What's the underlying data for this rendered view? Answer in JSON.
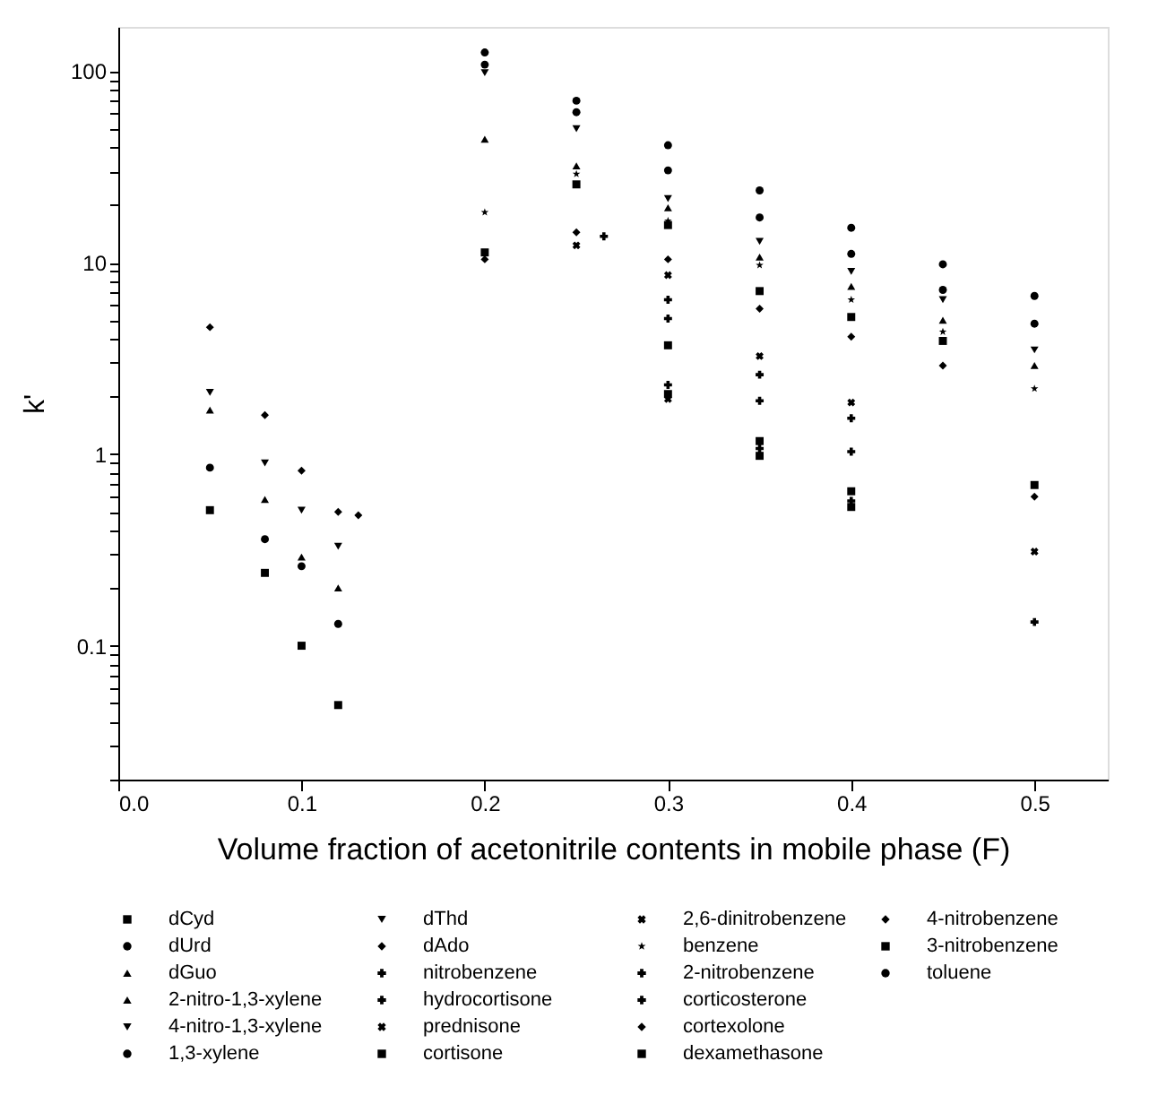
{
  "chart_data": {
    "type": "scatter",
    "xlabel": "Volume fraction of acetonitrile contents in mobile phase (F)",
    "ylabel": "k'",
    "x": [
      0.05,
      0.08,
      0.1,
      0.12,
      0.2,
      0.25,
      0.3,
      0.35,
      0.4,
      0.45,
      0.5
    ],
    "xlim": [
      0,
      0.54
    ],
    "ylim": [
      0.02,
      170
    ],
    "log": true,
    "grid": false,
    "legend": "bottom",
    "xticks": [
      {
        "value": 0,
        "label": "0.0"
      },
      0.1,
      0.2,
      0.3,
      0.4,
      0.5
    ],
    "yticks": [
      {
        "value": 0.02,
        "label": null
      },
      {
        "value": 0.03,
        "label": null
      },
      {
        "value": 0.04,
        "label": null
      },
      {
        "value": 0.05,
        "label": null
      },
      {
        "value": 0.06,
        "label": null
      },
      {
        "value": 0.07,
        "label": null
      },
      {
        "value": 0.08,
        "label": null
      },
      {
        "value": 0.09,
        "label": null
      },
      0.1,
      {
        "value": 0.2,
        "label": null
      },
      {
        "value": 0.3,
        "label": null
      },
      {
        "value": 0.4,
        "label": null
      },
      {
        "value": 0.5,
        "label": null
      },
      {
        "value": 0.6,
        "label": null
      },
      {
        "value": 0.7,
        "label": null
      },
      {
        "value": 0.8,
        "label": null
      },
      {
        "value": 0.9,
        "label": null
      },
      1,
      {
        "value": 2,
        "label": null
      },
      {
        "value": 3,
        "label": null
      },
      {
        "value": 4,
        "label": null
      },
      {
        "value": 5,
        "label": null
      },
      {
        "value": 6,
        "label": null
      },
      {
        "value": 7,
        "label": null
      },
      {
        "value": 8,
        "label": null
      },
      {
        "value": 9,
        "label": null
      },
      10,
      {
        "value": 20,
        "label": null
      },
      {
        "value": 30,
        "label": null
      },
      {
        "value": 40,
        "label": null
      },
      {
        "value": 50,
        "label": null
      },
      {
        "value": 60,
        "label": null
      },
      {
        "value": 70,
        "label": null
      },
      {
        "value": 80,
        "label": null
      },
      {
        "value": 90,
        "label": null
      },
      100
    ],
    "series": [
      {
        "name": "dCyd",
        "color": "#000000",
        "marker": "square",
        "values": [
          0.51,
          0.24,
          0.1,
          0.049,
          null,
          null,
          null,
          null,
          null,
          null,
          null
        ]
      },
      {
        "name": "dUrd",
        "color": "#000000",
        "marker": "circle",
        "values": [
          0.85,
          0.36,
          0.26,
          0.13,
          null,
          null,
          null,
          null,
          null,
          null,
          null
        ]
      },
      {
        "name": "dGuo",
        "color": "#000000",
        "marker": "triangle",
        "values": [
          1.7,
          0.58,
          0.29,
          0.2,
          null,
          null,
          null,
          null,
          null,
          null,
          null
        ]
      },
      {
        "name": "2-nitro-1,3-xylene",
        "color": "#000000",
        "marker": "triangle",
        "values": [
          null,
          null,
          null,
          null,
          44,
          32,
          19.3,
          10.7,
          7.5,
          5.0,
          2.9
        ]
      },
      {
        "name": "4-nitro-1,3-xylene",
        "color": "#000000",
        "marker": "triangle-down",
        "values": [
          null,
          null,
          null,
          null,
          98,
          50,
          21.6,
          12.9,
          9.0,
          6.4,
          3.5
        ]
      },
      {
        "name": "1,3-xylene",
        "color": "#000000",
        "marker": "circle",
        "values": [
          null,
          null,
          null,
          null,
          125,
          70,
          41,
          23.8,
          15.2,
          9.8,
          6.7
        ]
      },
      {
        "name": "dThd",
        "color": "#000000",
        "marker": "triangle-down",
        "values": [
          2.1,
          0.9,
          0.51,
          0.33,
          null,
          null,
          null,
          null,
          null,
          null,
          null
        ]
      },
      {
        "name": "dAdo",
        "color": "#000000",
        "marker": "diamond",
        "values": [
          4.6,
          1.6,
          0.82,
          0.5,
          null,
          null,
          null,
          null,
          null,
          null,
          null
        ]
      },
      {
        "name": "nitrobenzene",
        "color": "#000000",
        "marker": "cross",
        "values": [
          null,
          null,
          null,
          null,
          null,
          null,
          5.1,
          1.9,
          1.03,
          null,
          null
        ]
      },
      {
        "name": "hydrocortisone",
        "color": "#000000",
        "marker": "cross",
        "values": [
          null,
          null,
          null,
          null,
          null,
          null,
          2.3,
          1.07,
          0.57,
          null,
          null
        ]
      },
      {
        "name": "prednisone",
        "color": "#000000",
        "marker": "x",
        "values": [
          null,
          null,
          null,
          null,
          null,
          null,
          1.94,
          null,
          null,
          null,
          null
        ]
      },
      {
        "name": "cortisone",
        "color": "#000000",
        "marker": "square",
        "values": [
          null,
          null,
          null,
          null,
          null,
          null,
          2.06,
          0.98,
          0.53,
          null,
          null
        ]
      },
      {
        "name": "2,6-dinitrobenzene",
        "color": "#000000",
        "marker": "x",
        "values": [
          null,
          null,
          null,
          null,
          null,
          12.3,
          8.6,
          3.25,
          1.86,
          null,
          0.31
        ]
      },
      {
        "name": "benzene",
        "color": "#000000",
        "marker": "star",
        "values": [
          null,
          null,
          null,
          null,
          18.3,
          29,
          16.5,
          9.7,
          6.4,
          4.35,
          2.2
        ]
      },
      {
        "name": "2-nitrobenzene",
        "color": "#000000",
        "marker": "cross",
        "values": [
          null,
          null,
          null,
          null,
          null,
          null,
          6.4,
          2.6,
          1.54,
          null,
          0.133
        ]
      },
      {
        "name": "corticosterone",
        "color": "#000000",
        "marker": "cross",
        "x": [
          0.265
        ],
        "values": [
          13.7
        ]
      },
      {
        "name": "cortexolone",
        "color": "#000000",
        "marker": "diamond",
        "x": [
          0.131
        ],
        "values": [
          0.48
        ]
      },
      {
        "name": "dexamethasone",
        "color": "#000000",
        "marker": "square",
        "values": [
          null,
          null,
          null,
          null,
          null,
          null,
          3.7,
          1.17,
          0.64,
          null,
          null
        ]
      },
      {
        "name": "4-nitrobenzene",
        "color": "#000000",
        "marker": "diamond",
        "values": [
          null,
          null,
          null,
          null,
          10.4,
          14.4,
          10.4,
          5.75,
          4.1,
          2.9,
          0.6
        ]
      },
      {
        "name": "3-nitrobenzene",
        "color": "#000000",
        "marker": "square",
        "values": [
          null,
          null,
          null,
          null,
          11.3,
          25.6,
          15.7,
          7.1,
          5.2,
          3.9,
          0.69
        ]
      },
      {
        "name": "toluene",
        "color": "#000000",
        "marker": "circle",
        "values": [
          null,
          null,
          null,
          null,
          108,
          61,
          30.3,
          17.2,
          11.1,
          7.2,
          4.8
        ]
      }
    ]
  }
}
